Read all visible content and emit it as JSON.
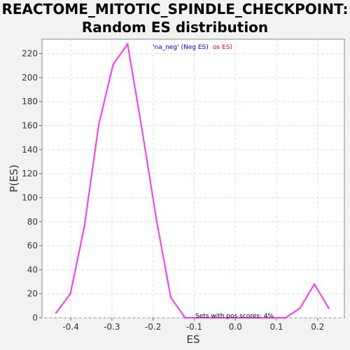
{
  "title_line1": "REACTOME_MITOTIC_SPINDLE_CHECKPOINT:",
  "title_line2": "Random ES distribution",
  "legend": {
    "neg_text": "'na_neg' (Neg ES)",
    "pos_text": "'na_pos' (Pos ES)",
    "neg_color": "#0000ff",
    "pos_color": "#ff0000"
  },
  "annotation": "Sets with pos scores: 4%",
  "chart_data": {
    "type": "line",
    "title": "REACTOME_MITOTIC_SPINDLE_CHECKPOINT: Random ES distribution",
    "xlabel": "ES",
    "ylabel": "P(ES)",
    "xlim": [
      -0.47,
      0.265
    ],
    "ylim": [
      0,
      232
    ],
    "xticks": [
      -0.4,
      -0.3,
      -0.2,
      -0.1,
      0.0,
      0.1,
      0.2
    ],
    "xtick_labels": [
      "-0.4",
      "-0.3",
      "-0.2",
      "-0.1",
      "0.0",
      "0.1",
      "0.2"
    ],
    "yticks": [
      0,
      20,
      40,
      60,
      80,
      100,
      120,
      140,
      160,
      180,
      200,
      220
    ],
    "ytick_labels": [
      "0",
      "20",
      "40",
      "60",
      "80",
      "100",
      "120",
      "140",
      "160",
      "180",
      "200",
      "220"
    ],
    "grid": true,
    "line_color": "#ff33ff",
    "series": [
      {
        "x": [
          -0.436,
          -0.401,
          -0.367,
          -0.332,
          -0.297,
          -0.262,
          -0.227,
          -0.192,
          -0.157,
          -0.122,
          -0.088,
          -0.053,
          -0.018,
          0.017,
          0.052,
          0.087,
          0.122,
          0.157,
          0.192,
          0.227
        ],
        "y": [
          4,
          20,
          76,
          161,
          211,
          228,
          157,
          82,
          17,
          0,
          0,
          0,
          0,
          0,
          0,
          0,
          0,
          8,
          28,
          8
        ]
      }
    ]
  }
}
